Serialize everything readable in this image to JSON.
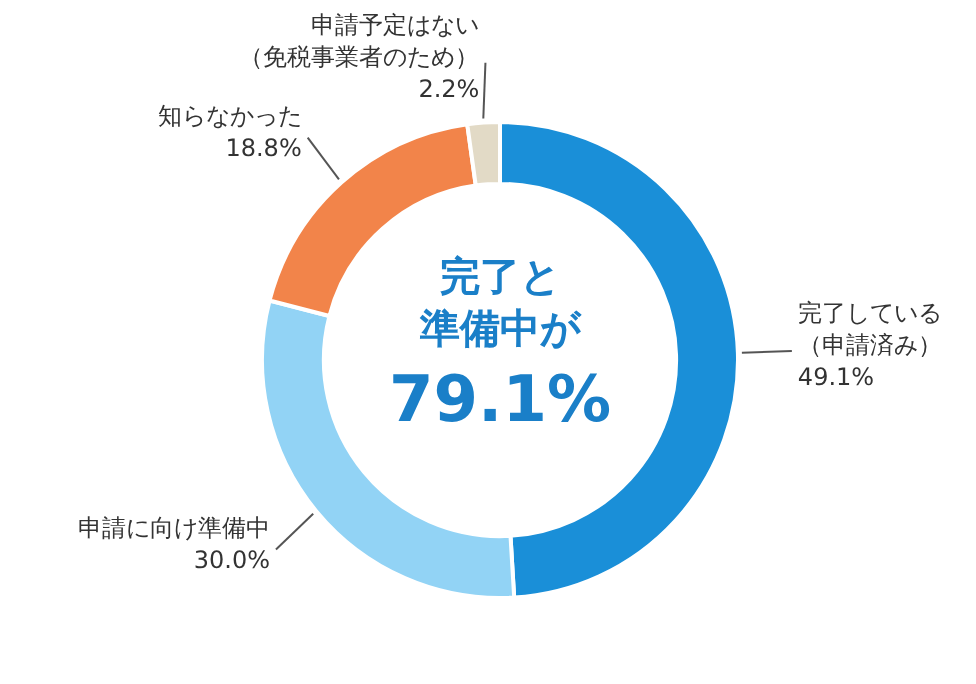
{
  "chart_data": {
    "type": "donut",
    "categories": [
      "完了している（申請済み）",
      "申請に向け準備中",
      "知らなかった",
      "申請予定はない（免税事業者のため）"
    ],
    "values": [
      49.1,
      30.0,
      18.8,
      2.2
    ],
    "colors": [
      "#1a8fd8",
      "#92d3f5",
      "#f2844a",
      "#e2dac6"
    ],
    "value_labels": [
      "49.1%",
      "30.0%",
      "18.8%",
      "2.2%"
    ],
    "annotations": [
      "完了と",
      "準備中が",
      "79.1%"
    ],
    "legend": false
  }
}
